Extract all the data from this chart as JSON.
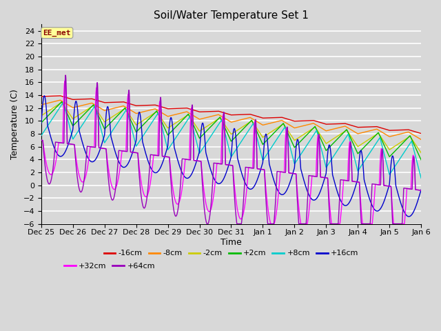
{
  "title": "Soil/Water Temperature Set 1",
  "xlabel": "Time",
  "ylabel": "Temperature (C)",
  "ylim": [
    -6,
    25
  ],
  "yticks": [
    -6,
    -4,
    -2,
    0,
    2,
    4,
    6,
    8,
    10,
    12,
    14,
    16,
    18,
    20,
    22,
    24
  ],
  "xtick_labels": [
    "Dec 25",
    "Dec 26",
    "Dec 27",
    "Dec 28",
    "Dec 29",
    "Dec 30",
    "Dec 31",
    "Jan 1",
    "Jan 2",
    "Jan 3",
    "Jan 4",
    "Jan 5",
    "Jan 6"
  ],
  "background_color": "#d8d8d8",
  "plot_bg_color": "#d8d8d8",
  "grid_color": "#ffffff",
  "watermark_text": "EE_met",
  "watermark_color": "#8b0000",
  "watermark_bg": "#ffff99",
  "line_colors": {
    "-16cm": "#dd0000",
    "-8cm": "#ff8800",
    "-2cm": "#cccc00",
    "+2cm": "#00bb00",
    "+8cm": "#00cccc",
    "+16cm": "#0000cc",
    "+32cm": "#ff00ff",
    "+64cm": "#9900bb"
  },
  "figsize": [
    6.4,
    4.8
  ],
  "dpi": 100
}
